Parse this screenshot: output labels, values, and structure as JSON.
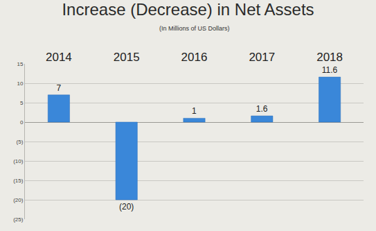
{
  "chart_data": {
    "type": "bar",
    "title": "Increase (Decrease) in Net Assets",
    "subtitle": "(In Millions of US Dollars)",
    "categories": [
      "2014",
      "2015",
      "2016",
      "2017",
      "2018"
    ],
    "values": [
      7,
      -20,
      1,
      1.6,
      11.6
    ],
    "value_labels": [
      "7",
      "(20)",
      "1",
      "1.6",
      "11.6"
    ],
    "data_labels": true,
    "color": "#3a87d9",
    "ylim": [
      -25,
      15
    ],
    "yticks": [
      15,
      10,
      5,
      0,
      {
        "value": -5,
        "label": "(5)"
      },
      {
        "value": -10,
        "label": "(10)"
      },
      {
        "value": -15,
        "label": "(15)"
      },
      {
        "value": -20,
        "label": "(20)"
      },
      {
        "value": -25,
        "label": "(25)"
      }
    ],
    "grid": true
  }
}
